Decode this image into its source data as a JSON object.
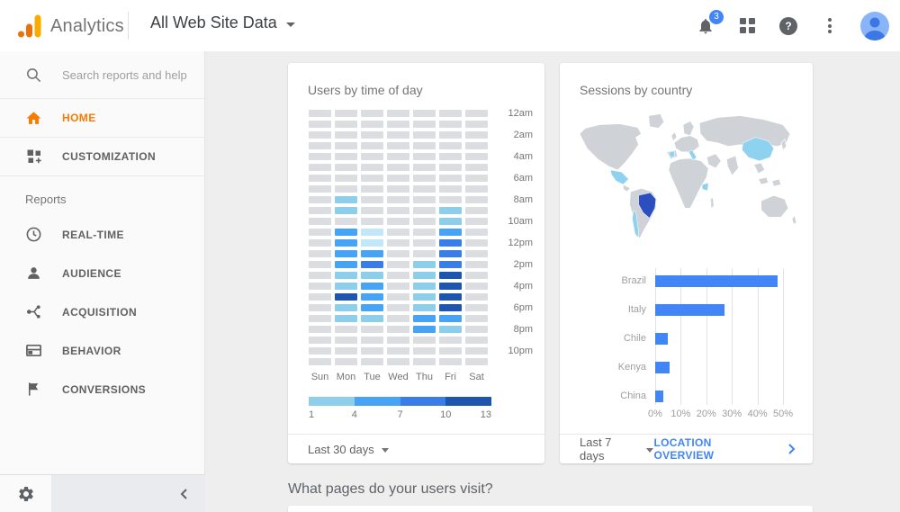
{
  "header": {
    "product_name": "Analytics",
    "property_title": "All Web Site Data",
    "notification_count": "3"
  },
  "sidebar": {
    "search_placeholder": "Search reports and help",
    "items": [
      {
        "label": "HOME",
        "icon": "home-icon",
        "active": true
      },
      {
        "label": "CUSTOMIZATION",
        "icon": "customization-icon",
        "active": false
      }
    ],
    "section_label": "Reports",
    "report_items": [
      {
        "label": "REAL-TIME",
        "icon": "clock-icon"
      },
      {
        "label": "AUDIENCE",
        "icon": "person-icon"
      },
      {
        "label": "ACQUISITION",
        "icon": "acquisition-icon"
      },
      {
        "label": "BEHAVIOR",
        "icon": "behavior-icon"
      },
      {
        "label": "CONVERSIONS",
        "icon": "flag-icon"
      }
    ]
  },
  "cards": {
    "time_of_day": {
      "title": "Users by time of day",
      "timeframe": "Last 30 days"
    },
    "country": {
      "title": "Sessions by country",
      "timeframe": "Last 7 days",
      "link_label": "LOCATION OVERVIEW"
    }
  },
  "question_heading": "What pages do your users visit?",
  "chart_data": [
    {
      "type": "heatmap",
      "title": "Users by time of day",
      "columns": [
        "Sun",
        "Mon",
        "Tue",
        "Wed",
        "Thu",
        "Fri",
        "Sat"
      ],
      "row_labels": [
        "12am",
        "2am",
        "4am",
        "6am",
        "8am",
        "10am",
        "12pm",
        "2pm",
        "4pm",
        "6pm",
        "8pm",
        "10pm"
      ],
      "rows_are_hours": "24 hourly rows, label shown every 2 hours",
      "palette": [
        "#dbdde0",
        "#c2e7f8",
        "#8dcfea",
        "#47a3f3",
        "#3a7de9",
        "#1e55ae"
      ],
      "matrix": [
        [
          0,
          0,
          0,
          0,
          0,
          0,
          0
        ],
        [
          0,
          0,
          0,
          0,
          0,
          0,
          0
        ],
        [
          0,
          0,
          0,
          0,
          0,
          0,
          0
        ],
        [
          0,
          0,
          0,
          0,
          0,
          0,
          0
        ],
        [
          0,
          0,
          0,
          0,
          0,
          0,
          0
        ],
        [
          0,
          0,
          0,
          0,
          0,
          0,
          0
        ],
        [
          0,
          0,
          0,
          0,
          0,
          0,
          0
        ],
        [
          0,
          0,
          0,
          0,
          0,
          0,
          0
        ],
        [
          0,
          2,
          0,
          0,
          0,
          0,
          0
        ],
        [
          0,
          2,
          0,
          0,
          0,
          2,
          0
        ],
        [
          0,
          0,
          0,
          0,
          0,
          2,
          0
        ],
        [
          0,
          3,
          1,
          0,
          0,
          3,
          0
        ],
        [
          0,
          3,
          1,
          0,
          0,
          4,
          0
        ],
        [
          0,
          3,
          3,
          0,
          0,
          4,
          0
        ],
        [
          0,
          3,
          4,
          0,
          2,
          4,
          0
        ],
        [
          0,
          2,
          2,
          0,
          2,
          5,
          0
        ],
        [
          0,
          2,
          3,
          0,
          2,
          5,
          0
        ],
        [
          0,
          5,
          3,
          0,
          2,
          5,
          0
        ],
        [
          0,
          2,
          3,
          0,
          2,
          5,
          0
        ],
        [
          0,
          2,
          2,
          0,
          3,
          3,
          0
        ],
        [
          0,
          0,
          0,
          0,
          3,
          2,
          0
        ],
        [
          0,
          0,
          0,
          0,
          0,
          0,
          0
        ],
        [
          0,
          0,
          0,
          0,
          0,
          0,
          0
        ],
        [
          0,
          0,
          0,
          0,
          0,
          0,
          0
        ]
      ],
      "legend": {
        "colors": [
          "#8dcfea",
          "#47a3f3",
          "#3a7de9",
          "#1e55ae"
        ],
        "ticks": [
          "1",
          "4",
          "7",
          "10",
          "13"
        ]
      }
    },
    {
      "type": "bar",
      "title": "Sessions by country",
      "orientation": "horizontal",
      "categories": [
        "Brazil",
        "Italy",
        "Chile",
        "Kenya",
        "China"
      ],
      "values": [
        48,
        27,
        5,
        5.5,
        3
      ],
      "unit": "%",
      "xlim": [
        0,
        50
      ],
      "x_ticks": [
        "0%",
        "10%",
        "20%",
        "30%",
        "40%",
        "50%"
      ],
      "bar_color": "#4285f4",
      "map": {
        "base_color": "#cfd2d6",
        "highlight_dark_color": "#2b4fbe",
        "highlight_light_color": "#8fd2f0",
        "dark_countries": [
          "Brazil"
        ],
        "light_countries": [
          "Mexico",
          "Chile",
          "Spain",
          "Italy",
          "Kenya",
          "China"
        ]
      }
    }
  ]
}
